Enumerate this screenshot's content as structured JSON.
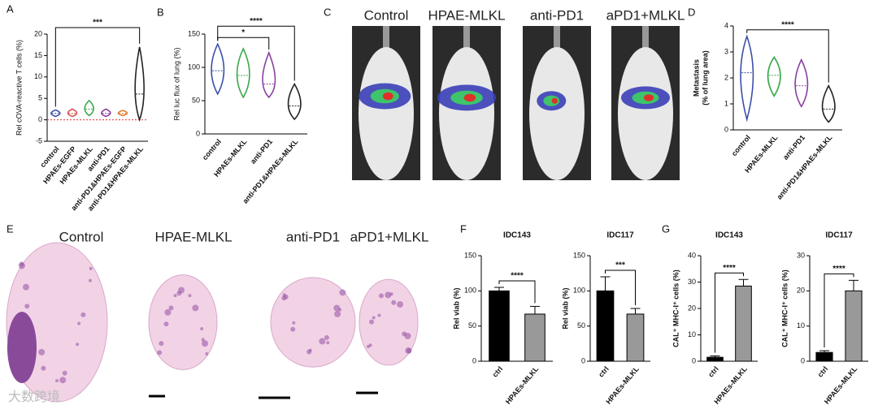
{
  "panel_labels": [
    "A",
    "B",
    "C",
    "D",
    "E",
    "F",
    "G"
  ],
  "watermark": "大数跨境",
  "image_panels": {
    "C": {
      "labels": [
        "Control",
        "HPAE-MLKL",
        "anti-PD1",
        "aPD1+MLKL"
      ]
    },
    "E": {
      "labels": [
        "Control",
        "HPAE-MLKL",
        "anti-PD1",
        "aPD1+MLKL"
      ]
    }
  },
  "chart_data": [
    {
      "type": "violin",
      "y_label": "Rel cOVA-reactive T cells (%)",
      "categories": [
        "control",
        "HPAEs-EGFP",
        "HPAEs-MLKL",
        "anti-PD1",
        "anti-PD1&HPAEs-EGFP",
        "anti-PD1&HPAEs-MLKL"
      ],
      "values": [
        1.5,
        1.5,
        2.5,
        1.5,
        1.5,
        6
      ],
      "low": [
        0.8,
        0.8,
        1,
        0.8,
        1,
        0
      ],
      "high": [
        2.3,
        2.5,
        4.5,
        2.5,
        2.2,
        17
      ],
      "colors": [
        "#3b4fa8",
        "#d9534f",
        "#3aa84a",
        "#8b3fa0",
        "#e07a30",
        "#222222"
      ],
      "ylim": [
        -5,
        20
      ],
      "yticks": [
        -5,
        0,
        5,
        10,
        15,
        20
      ],
      "zero_line": true,
      "annotations": [
        {
          "text": "***",
          "between": [
            "control",
            "anti-PD1&HPAEs-MLKL"
          ]
        }
      ]
    },
    {
      "type": "violin",
      "y_label": "Rel luc flux of lung (%)",
      "categories": [
        "control",
        "HPAEs-MLKL",
        "anti-PD1",
        "anti-PD1&HPAEs-MLKL"
      ],
      "values": [
        95,
        88,
        75,
        42
      ],
      "low": [
        60,
        55,
        55,
        22
      ],
      "high": [
        135,
        128,
        122,
        75
      ],
      "colors": [
        "#3b4fa8",
        "#3aa84a",
        "#8b3fa0",
        "#222222"
      ],
      "ylim": [
        0,
        150
      ],
      "yticks": [
        0,
        50,
        100,
        150
      ],
      "annotations": [
        {
          "text": "*",
          "between": [
            "control",
            "anti-PD1"
          ]
        },
        {
          "text": "****",
          "between": [
            "control",
            "anti-PD1&HPAEs-MLKL"
          ]
        }
      ]
    },
    {
      "type": "violin",
      "y_label": [
        "Metastasis",
        "(% of lung area)"
      ],
      "categories": [
        "control",
        "HPAEs-MLKL",
        "anti-PD1",
        "anti-PD1&HPAEs-MLKL"
      ],
      "values": [
        2.2,
        2.1,
        1.7,
        0.8
      ],
      "low": [
        0.4,
        1.3,
        0.9,
        0.3
      ],
      "high": [
        3.6,
        2.8,
        2.7,
        1.7
      ],
      "colors": [
        "#3b4fa8",
        "#3aa84a",
        "#8b3fa0",
        "#222222"
      ],
      "ylim": [
        0,
        4
      ],
      "yticks": [
        0,
        1,
        2,
        3,
        4
      ],
      "annotations": [
        {
          "text": "****",
          "between": [
            "control",
            "anti-PD1&HPAEs-MLKL"
          ]
        }
      ]
    },
    {
      "type": "bar",
      "title": "IDC143",
      "y_label": "Rel viab (%)",
      "categories": [
        "ctrl",
        "HPAEs-MLKL"
      ],
      "values": [
        100,
        67
      ],
      "errors": [
        5,
        11
      ],
      "colors": [
        "#000000",
        "#999999"
      ],
      "ylim": [
        0,
        150
      ],
      "yticks": [
        0,
        50,
        100,
        150
      ],
      "annotations": [
        {
          "text": "****",
          "between": [
            "ctrl",
            "HPAEs-MLKL"
          ]
        }
      ]
    },
    {
      "type": "bar",
      "title": "IDC117",
      "y_label": "Rel viab (%)",
      "categories": [
        "ctrl",
        "HPAEs-MLKL"
      ],
      "values": [
        100,
        67
      ],
      "errors": [
        20,
        8
      ],
      "colors": [
        "#000000",
        "#999999"
      ],
      "ylim": [
        0,
        150
      ],
      "yticks": [
        0,
        50,
        100,
        150
      ],
      "annotations": [
        {
          "text": "***",
          "between": [
            "ctrl",
            "HPAEs-MLKL"
          ]
        }
      ]
    },
    {
      "type": "bar",
      "title": "IDC143",
      "y_label": "CAL⁺ MHC-I⁺ cells (%)",
      "categories": [
        "ctrl",
        "HPAEs-MLKL"
      ],
      "values": [
        1.5,
        28.5
      ],
      "errors": [
        0.5,
        2.5
      ],
      "colors": [
        "#000000",
        "#999999"
      ],
      "ylim": [
        0,
        40
      ],
      "yticks": [
        0,
        10,
        20,
        30,
        40
      ],
      "annotations": [
        {
          "text": "****",
          "between": [
            "ctrl",
            "HPAEs-MLKL"
          ]
        }
      ]
    },
    {
      "type": "bar",
      "title": "IDC117",
      "y_label": "CAL⁺ MHC-I⁺ cells (%)",
      "categories": [
        "ctrl",
        "HPAEs-MLKL"
      ],
      "values": [
        2.5,
        20
      ],
      "errors": [
        0.5,
        3
      ],
      "colors": [
        "#000000",
        "#999999"
      ],
      "ylim": [
        0,
        30
      ],
      "yticks": [
        0,
        10,
        20,
        30
      ],
      "annotations": [
        {
          "text": "****",
          "between": [
            "ctrl",
            "HPAEs-MLKL"
          ]
        }
      ]
    }
  ]
}
